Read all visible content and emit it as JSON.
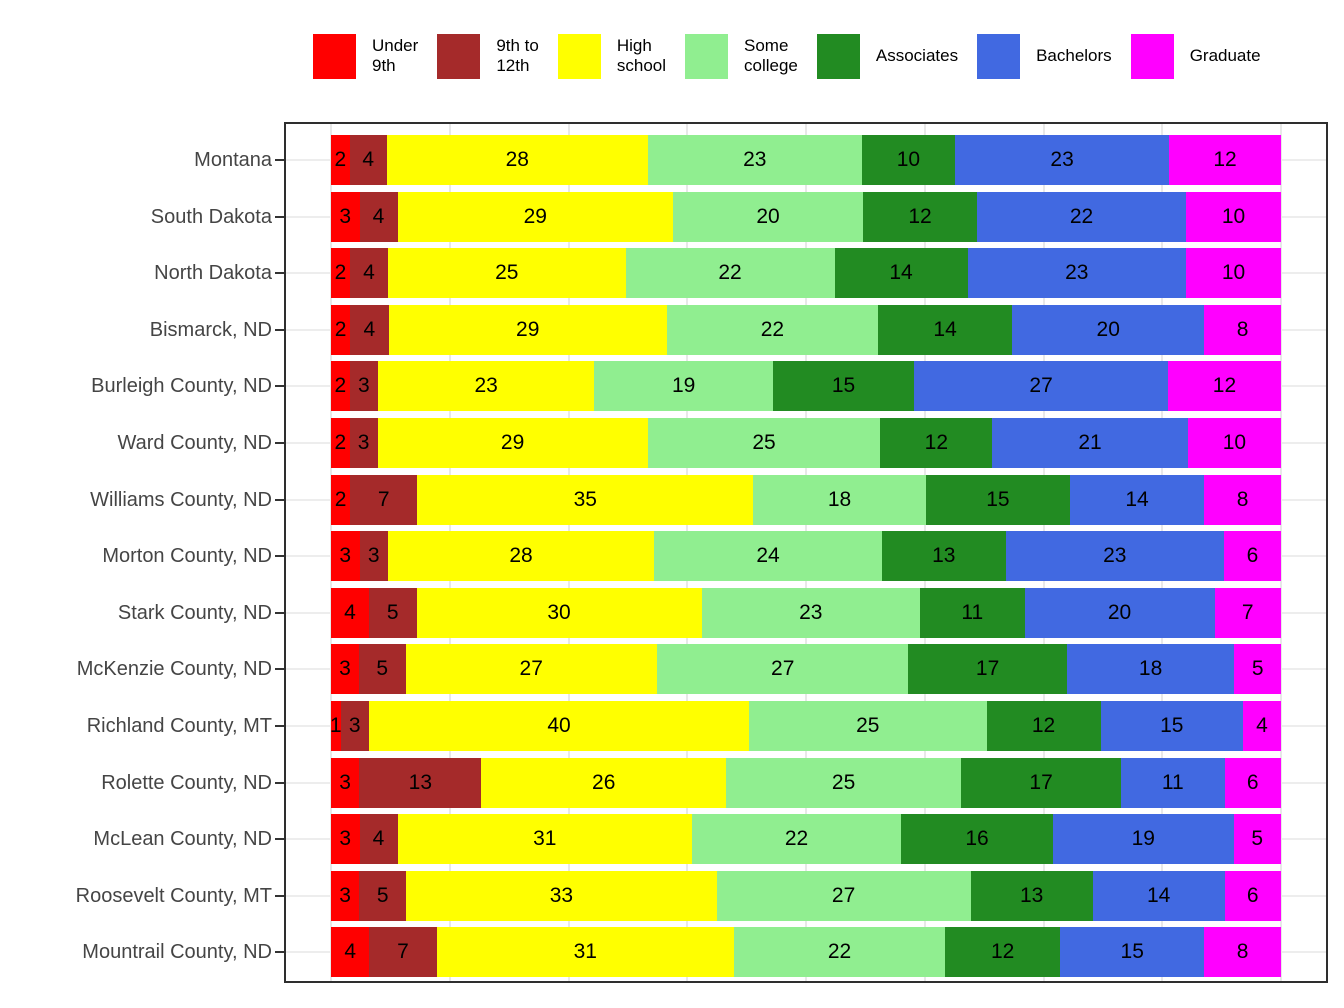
{
  "legend": {
    "items": [
      {
        "label": "Under\n9th",
        "color": "#FF0000"
      },
      {
        "label": "9th to\n12th",
        "color": "#A52A2A"
      },
      {
        "label": "High\nschool",
        "color": "#FFFF00"
      },
      {
        "label": "Some\ncollege",
        "color": "#90EE90"
      },
      {
        "label": "Associates",
        "color": "#228B22"
      },
      {
        "label": "Bachelors",
        "color": "#4169E1"
      },
      {
        "label": "Graduate",
        "color": "#FF00FF"
      }
    ]
  },
  "chart_data": {
    "type": "bar",
    "orientation": "horizontal",
    "stacked": true,
    "normalized_to_100_percent": true,
    "value_labels": "percent values printed inside segments",
    "legend_position": "top",
    "grid": "light vertical gridlines every 12.5% and horizontal gridline at each category; black panel border; no axis tick labels",
    "categories": [
      "Montana",
      "South Dakota",
      "North Dakota",
      "Bismarck, ND",
      "Burleigh County, ND",
      "Ward County, ND",
      "Williams County, ND",
      "Morton County, ND",
      "Stark County, ND",
      "McKenzie County, ND",
      "Richland County, MT",
      "Rolette County, ND",
      "McLean County, ND",
      "Roosevelt County, MT",
      "Mountrail County, ND"
    ],
    "series": [
      {
        "name": "Under 9th",
        "color": "#FF0000",
        "values": [
          2,
          3,
          2,
          2,
          2,
          2,
          2,
          3,
          4,
          3,
          1,
          3,
          3,
          3,
          4
        ]
      },
      {
        "name": "9th to 12th",
        "color": "#A52A2A",
        "values": [
          4,
          4,
          4,
          4,
          3,
          3,
          7,
          3,
          5,
          5,
          3,
          13,
          4,
          5,
          7
        ]
      },
      {
        "name": "High school",
        "color": "#FFFF00",
        "values": [
          28,
          29,
          25,
          29,
          23,
          29,
          35,
          28,
          30,
          27,
          40,
          26,
          31,
          33,
          31
        ]
      },
      {
        "name": "Some college",
        "color": "#90EE90",
        "values": [
          23,
          20,
          22,
          22,
          19,
          25,
          18,
          24,
          23,
          27,
          25,
          25,
          22,
          27,
          22
        ]
      },
      {
        "name": "Associates",
        "color": "#228B22",
        "values": [
          10,
          12,
          14,
          14,
          15,
          12,
          15,
          13,
          11,
          17,
          12,
          17,
          16,
          13,
          12
        ]
      },
      {
        "name": "Bachelors",
        "color": "#4169E1",
        "values": [
          23,
          22,
          23,
          20,
          27,
          21,
          14,
          23,
          20,
          18,
          15,
          11,
          19,
          14,
          15
        ]
      },
      {
        "name": "Graduate",
        "color": "#FF00FF",
        "values": [
          12,
          10,
          10,
          8,
          12,
          10,
          8,
          6,
          7,
          5,
          4,
          6,
          5,
          6,
          8
        ]
      }
    ]
  }
}
